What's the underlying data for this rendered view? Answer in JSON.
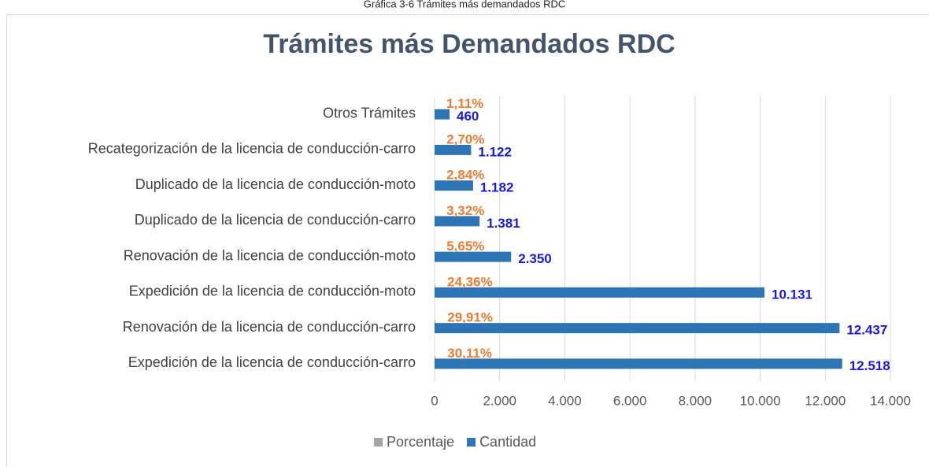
{
  "caption": "Gráfica 3-6 Trámites más demandados RDC",
  "chart_data": {
    "type": "bar",
    "orientation": "horizontal",
    "title": "Trámites más Demandados RDC",
    "categories": [
      "Otros Trámites",
      "Recategorización de la licencia de conducción-carro",
      "Duplicado de la licencia de conducción-moto",
      "Duplicado de la licencia de conducción-carro",
      "Renovación de la licencia de conducción-moto",
      "Expedición de la licencia de conducción-moto",
      "Renovación de la licencia de conducción-carro",
      "Expedición de la licencia de conducción-carro"
    ],
    "series": [
      {
        "name": "Porcentaje",
        "color": "#a5a5a5",
        "label_color": "#ed7d31",
        "values": [
          1.11,
          2.7,
          2.84,
          3.32,
          5.65,
          24.36,
          29.91,
          30.11
        ],
        "value_labels": [
          "1,11%",
          "2,70%",
          "2,84%",
          "3,32%",
          "5,65%",
          "24,36%",
          "29,91%",
          "30,11%"
        ]
      },
      {
        "name": "Cantidad",
        "color": "#2e75b6",
        "label_color": "#1a1ad6",
        "values": [
          460,
          1122,
          1182,
          1381,
          2350,
          10131,
          12437,
          12518
        ],
        "value_labels": [
          "460",
          "1.122",
          "1.182",
          "1.381",
          "2.350",
          "10.131",
          "12.437",
          "12.518"
        ]
      }
    ],
    "xlim": [
      0,
      14000
    ],
    "xticks": [
      0,
      {
        "value": 2000,
        "label": "2.000"
      },
      {
        "value": 4000,
        "label": "4.000"
      },
      {
        "value": 6000,
        "label": "6.000"
      },
      {
        "value": 8000,
        "label": "8.000"
      },
      {
        "value": 10000,
        "label": "10.000"
      },
      {
        "value": 12000,
        "label": "12.000"
      },
      {
        "value": 14000,
        "label": "14.000"
      }
    ],
    "grid": true,
    "legend": "bottom"
  }
}
